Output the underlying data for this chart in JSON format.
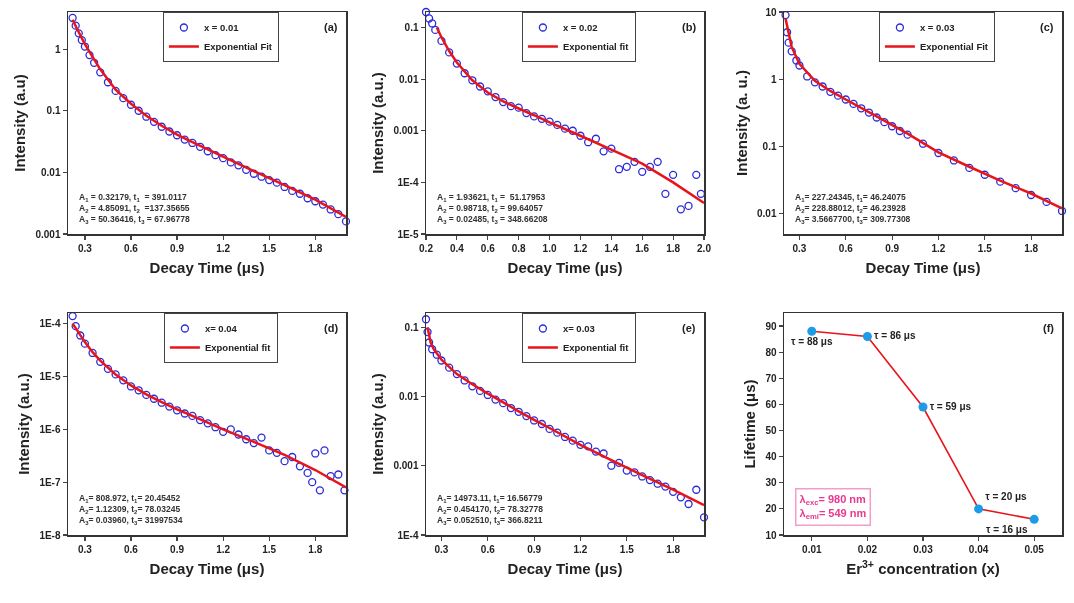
{
  "chart_data": [
    {
      "type": "scatter",
      "xlabel": "Decay Time (μs)",
      "ylabel": "Intensity (a.u)",
      "log": "y",
      "legend": "top",
      "xlim": [
        0.19,
        2.0
      ],
      "ylim": [
        0.001,
        4
      ],
      "xticks": [
        0.3,
        0.6,
        0.9,
        1.2,
        1.5,
        1.8
      ],
      "yticks": [
        0.001,
        0.01,
        0.1,
        1
      ],
      "annotations": [
        "(a)",
        "A$_{1}$ = 0.32179, t$_{1}$  = 391.0117",
        "A$_{2}$ = 4.85091, t$_{2}$  =137.35655",
        "A$_{3}$ = 50.36416, t$_{3}$ = 67.96778"
      ],
      "series": [
        {
          "name": "x = 0.01",
          "type": "scatter",
          "marker": "circle",
          "color": "#2b2bd9",
          "x": [
            0.22,
            0.24,
            0.26,
            0.28,
            0.3,
            0.33,
            0.36,
            0.4,
            0.45,
            0.5,
            0.55,
            0.6,
            0.65,
            0.7,
            0.75,
            0.8,
            0.85,
            0.9,
            0.95,
            1.0,
            1.05,
            1.1,
            1.15,
            1.2,
            1.25,
            1.3,
            1.35,
            1.4,
            1.45,
            1.5,
            1.55,
            1.6,
            1.65,
            1.7,
            1.75,
            1.8,
            1.85,
            1.9,
            1.95,
            2.0
          ],
          "values": [
            3.2,
            2.4,
            1.8,
            1.4,
            1.1,
            0.8,
            0.6,
            0.42,
            0.29,
            0.21,
            0.16,
            0.125,
            0.1,
            0.08,
            0.066,
            0.055,
            0.046,
            0.04,
            0.034,
            0.03,
            0.026,
            0.022,
            0.019,
            0.017,
            0.0145,
            0.013,
            0.011,
            0.0095,
            0.0085,
            0.0075,
            0.0068,
            0.0058,
            0.005,
            0.0045,
            0.0038,
            0.0034,
            0.003,
            0.0025,
            0.0021,
            0.0016
          ]
        },
        {
          "name": "Exponential Fit",
          "type": "line",
          "color": "#e8141c",
          "x": [
            0.22,
            0.25,
            0.3,
            0.35,
            0.4,
            0.5,
            0.6,
            0.7,
            0.8,
            0.9,
            1.0,
            1.2,
            1.4,
            1.6,
            1.8,
            2.0
          ],
          "values": [
            3.0,
            2.1,
            1.2,
            0.75,
            0.47,
            0.22,
            0.13,
            0.083,
            0.057,
            0.041,
            0.031,
            0.018,
            0.0105,
            0.0062,
            0.0036,
            0.0019
          ]
        }
      ]
    },
    {
      "type": "scatter",
      "xlabel": "Decay Time (μs)",
      "ylabel": "Intensity (a.u.)",
      "log": "y",
      "legend": "top",
      "xlim": [
        0.2,
        2.0
      ],
      "ylim": [
        1e-05,
        0.2
      ],
      "xticks": [
        0.2,
        0.4,
        0.6,
        0.8,
        {
          "value": 1,
          "label": "1.0"
        },
        1.2,
        1.4,
        1.6,
        1.8,
        {
          "value": 2,
          "label": "2.0"
        }
      ],
      "yticks": [
        {
          "value": 1e-05,
          "label": "1E-5"
        },
        {
          "value": 0.0001,
          "label": "1E-4"
        },
        0.001,
        0.01,
        0.1
      ],
      "annotations": [
        "(b)",
        "A$_{1}$ = 1.93621, t$_{1}$ =  51.17953",
        "A$_{2}$ = 0.98718, t$_{2}$ = 99.64057",
        "A$_{3}$ = 0.02485, t$_{3}$ = 348.66208"
      ],
      "series": [
        {
          "name": "x = 0.02",
          "type": "scatter",
          "marker": "circle",
          "color": "#2b2bd9",
          "x": [
            0.2,
            0.22,
            0.24,
            0.26,
            0.3,
            0.35,
            0.4,
            0.45,
            0.5,
            0.55,
            0.6,
            0.65,
            0.7,
            0.75,
            0.8,
            0.85,
            0.9,
            0.95,
            1.0,
            1.05,
            1.1,
            1.15,
            1.2,
            1.25,
            1.3,
            1.35,
            1.4,
            1.45,
            1.5,
            1.55,
            1.6,
            1.65,
            1.7,
            1.75,
            1.8,
            1.85,
            1.9,
            1.95,
            1.98
          ],
          "values": [
            0.2,
            0.15,
            0.12,
            0.09,
            0.055,
            0.033,
            0.02,
            0.013,
            0.0095,
            0.0072,
            0.0058,
            0.0045,
            0.0036,
            0.003,
            0.0028,
            0.0022,
            0.0019,
            0.0017,
            0.0015,
            0.0013,
            0.0011,
            0.001,
            0.0008,
            0.0006,
            0.0007,
            0.0004,
            0.00045,
            0.00018,
            0.0002,
            0.00025,
            0.00016,
            0.0002,
            0.00025,
            6e-05,
            0.00014,
            3e-05,
            3.5e-05,
            0.00014,
            6e-05
          ]
        },
        {
          "name": "Exponential fit",
          "type": "line",
          "color": "#e8141c",
          "x": [
            0.27,
            0.3,
            0.35,
            0.4,
            0.5,
            0.6,
            0.7,
            0.8,
            0.9,
            1.0,
            1.2,
            1.4,
            1.6,
            1.8,
            2.0
          ],
          "values": [
            0.1,
            0.065,
            0.035,
            0.021,
            0.0095,
            0.0055,
            0.0037,
            0.0027,
            0.002,
            0.00145,
            0.0008,
            0.00043,
            0.00023,
            0.0001,
            4e-05
          ]
        }
      ]
    },
    {
      "type": "scatter",
      "xlabel": "Decay Time (μs)",
      "ylabel": "Intensity (a. u.)",
      "log": "y",
      "legend": "top",
      "xlim": [
        0.2,
        2.0
      ],
      "ylim": [
        0.005,
        10
      ],
      "xticks": [
        0.3,
        0.6,
        0.9,
        1.2,
        1.5,
        1.8
      ],
      "yticks": [
        0.01,
        0.1,
        1,
        10
      ],
      "annotations": [
        "(c)",
        "A$_{1}$= 227.24345, t$_{1}$= 46.24075",
        "A$_{2}$= 228.88012, t$_{2}$= 46.23928",
        "A$_{3}$= 3.5667700, t$_{3}$= 309.77308"
      ],
      "series": [
        {
          "name": "x = 0.03",
          "type": "scatter",
          "marker": "circle",
          "color": "#2b2bd9",
          "x": [
            0.21,
            0.22,
            0.23,
            0.25,
            0.28,
            0.3,
            0.35,
            0.4,
            0.45,
            0.5,
            0.55,
            0.6,
            0.65,
            0.7,
            0.75,
            0.8,
            0.85,
            0.9,
            0.95,
            1.0,
            1.1,
            1.2,
            1.3,
            1.4,
            1.5,
            1.6,
            1.7,
            1.8,
            1.9,
            2.0
          ],
          "values": [
            9,
            5,
            3.5,
            2.6,
            1.9,
            1.6,
            1.1,
            0.9,
            0.78,
            0.65,
            0.57,
            0.5,
            0.43,
            0.37,
            0.32,
            0.27,
            0.23,
            0.2,
            0.17,
            0.15,
            0.11,
            0.08,
            0.062,
            0.048,
            0.038,
            0.03,
            0.024,
            0.019,
            0.015,
            0.011
          ]
        },
        {
          "name": "Exponential Fit",
          "type": "line",
          "color": "#e8141c",
          "x": [
            0.21,
            0.25,
            0.3,
            0.4,
            0.5,
            0.6,
            0.8,
            1.0,
            1.2,
            1.4,
            1.6,
            1.8,
            2.0
          ],
          "values": [
            8,
            3,
            1.7,
            0.95,
            0.67,
            0.5,
            0.28,
            0.155,
            0.082,
            0.05,
            0.031,
            0.02,
            0.012
          ]
        }
      ]
    },
    {
      "type": "scatter",
      "xlabel": "Decay Time (μs)",
      "ylabel": "Intensity (a.u.)",
      "log": "y",
      "legend": "top",
      "xlim": [
        0.19,
        2.0
      ],
      "ylim": [
        1e-08,
        0.00016
      ],
      "xticks": [
        0.3,
        0.6,
        0.9,
        1.2,
        1.5,
        1.8
      ],
      "yticks": [
        {
          "value": 1e-08,
          "label": "1E-8"
        },
        {
          "value": 1e-07,
          "label": "1E-7"
        },
        {
          "value": 1e-06,
          "label": "1E-6"
        },
        {
          "value": 1e-05,
          "label": "1E-5"
        },
        {
          "value": 0.0001,
          "label": "1E-4"
        }
      ],
      "annotations": [
        "(d)",
        "A$_{1}$= 808.972, t$_{1}$= 20.45452",
        "A$_{2}$= 1.12309, t$_{2}$= 78.03245",
        "A$_{3}$= 0.03960, t$_{3}$= 31997534"
      ],
      "series": [
        {
          "name": "x= 0.04",
          "type": "scatter",
          "marker": "circle",
          "color": "#2b2bd9",
          "x": [
            0.22,
            0.24,
            0.27,
            0.3,
            0.35,
            0.4,
            0.45,
            0.5,
            0.55,
            0.6,
            0.65,
            0.7,
            0.75,
            0.8,
            0.85,
            0.9,
            0.95,
            1.0,
            1.05,
            1.1,
            1.15,
            1.2,
            1.25,
            1.3,
            1.35,
            1.4,
            1.45,
            1.5,
            1.55,
            1.6,
            1.65,
            1.7,
            1.75,
            1.78,
            1.8,
            1.83,
            1.86,
            1.9,
            1.95,
            1.99
          ],
          "values": [
            0.00014,
            9e-05,
            6e-05,
            4.2e-05,
            2.8e-05,
            1.9e-05,
            1.4e-05,
            1.1e-05,
            8.5e-06,
            6.5e-06,
            5.5e-06,
            4.5e-06,
            3.8e-06,
            3.2e-06,
            2.7e-06,
            2.3e-06,
            2e-06,
            1.8e-06,
            1.5e-06,
            1.3e-06,
            1.1e-06,
            9e-07,
            1e-06,
            8e-07,
            6.5e-07,
            5.5e-07,
            7e-07,
            4e-07,
            3.6e-07,
            2.5e-07,
            3e-07,
            2e-07,
            1.5e-07,
            1e-07,
            3.5e-07,
            7e-08,
            4e-07,
            1.3e-07,
            1.4e-07,
            7e-08
          ]
        },
        {
          "name": "Exponential fit",
          "type": "line",
          "color": "#e8141c",
          "x": [
            0.22,
            0.25,
            0.3,
            0.35,
            0.4,
            0.5,
            0.6,
            0.7,
            0.8,
            0.9,
            1.0,
            1.2,
            1.4,
            1.6,
            1.8,
            2.0
          ],
          "values": [
            0.0001,
            7.5e-05,
            4.5e-05,
            2.9e-05,
            2e-05,
            1.1e-05,
            6.8e-06,
            4.6e-06,
            3.3e-06,
            2.4e-06,
            1.8e-06,
            1e-06,
            5.8e-07,
            3.3e-07,
            1.7e-07,
            8e-08
          ]
        }
      ]
    },
    {
      "type": "scatter",
      "xlabel": "Decay Time (μs)",
      "ylabel": "Intensity (a.u.)",
      "log": "y",
      "legend": "top",
      "xlim": [
        0.2,
        2.0
      ],
      "ylim": [
        0.0001,
        0.16
      ],
      "xticks": [
        0.3,
        0.6,
        0.9,
        1.2,
        1.5,
        1.8
      ],
      "yticks": [
        {
          "value": 0.0001,
          "label": "1E-4"
        },
        0.001,
        0.01,
        0.1
      ],
      "annotations": [
        "(e)",
        "A$_{1}$= 14973.11, t$_{1}$= 16.56779",
        "A$_{2}$= 0.454170, t$_{2}$= 78.32778",
        "A$_{3}$= 0.052510, t$_{3}$= 366.8211"
      ],
      "series": [
        {
          "name": "x= 0.03",
          "type": "scatter",
          "marker": "circle",
          "color": "#2b2bd9",
          "x": [
            0.2,
            0.21,
            0.22,
            0.24,
            0.27,
            0.3,
            0.35,
            0.4,
            0.45,
            0.5,
            0.55,
            0.6,
            0.65,
            0.7,
            0.75,
            0.8,
            0.85,
            0.9,
            0.95,
            1.0,
            1.05,
            1.1,
            1.15,
            1.2,
            1.25,
            1.3,
            1.35,
            1.4,
            1.45,
            1.5,
            1.55,
            1.6,
            1.65,
            1.7,
            1.75,
            1.8,
            1.85,
            1.9,
            1.95,
            2.0
          ],
          "values": [
            0.13,
            0.085,
            0.06,
            0.048,
            0.04,
            0.033,
            0.026,
            0.021,
            0.017,
            0.014,
            0.012,
            0.0105,
            0.009,
            0.008,
            0.0068,
            0.006,
            0.0052,
            0.0045,
            0.004,
            0.0034,
            0.003,
            0.0026,
            0.0023,
            0.002,
            0.0019,
            0.0016,
            0.0015,
            0.001,
            0.0011,
            0.00085,
            0.0008,
            0.0007,
            0.00062,
            0.00055,
            0.0005,
            0.00042,
            0.00035,
            0.00028,
            0.00045,
            0.00018
          ]
        },
        {
          "name": "Exponential fit",
          "type": "line",
          "color": "#e8141c",
          "x": [
            0.21,
            0.23,
            0.25,
            0.3,
            0.4,
            0.5,
            0.6,
            0.7,
            0.8,
            0.9,
            1.0,
            1.2,
            1.4,
            1.6,
            1.8,
            2.0
          ],
          "values": [
            0.1,
            0.06,
            0.048,
            0.034,
            0.021,
            0.015,
            0.011,
            0.0082,
            0.0061,
            0.0046,
            0.0035,
            0.002,
            0.0012,
            0.00073,
            0.00045,
            0.00027
          ]
        }
      ]
    },
    {
      "type": "line",
      "xlabel": "Er$^{3+}$ concentration (x)",
      "ylabel": "Lifetime (μs)",
      "marker": "circle",
      "xlim": [
        0.005,
        0.055
      ],
      "ylim": [
        10,
        95
      ],
      "xticks": [
        0.01,
        0.02,
        0.03,
        0.04,
        0.05
      ],
      "yticks": [
        10,
        20,
        30,
        40,
        50,
        60,
        70,
        80,
        90
      ],
      "annotations": [
        "(f)",
        "λ$_{exc}$= 980 nm",
        "λ$_{emi}$= 549 nm"
      ],
      "x": [
        0.01,
        0.02,
        0.03,
        0.04,
        0.05
      ],
      "series": [
        {
          "color": "#e8141c",
          "values": [
            88,
            86,
            59,
            20,
            16
          ],
          "value_labels": [
            "τ = 88 μs",
            "τ = 86 μs",
            "τ = 59 μs",
            "τ = 20 μs",
            "τ = 16 μs"
          ]
        }
      ]
    }
  ]
}
